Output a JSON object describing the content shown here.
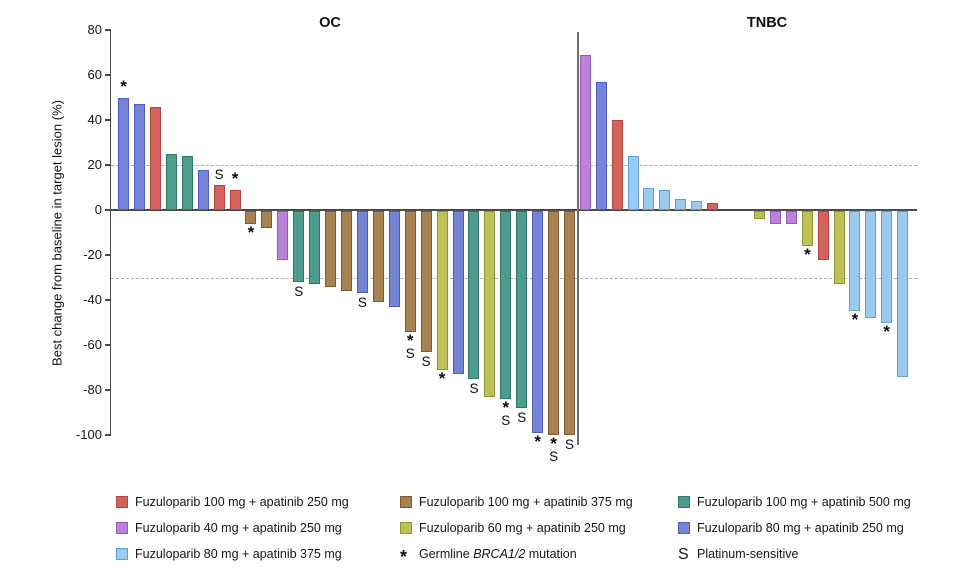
{
  "chart_data": {
    "type": "bar",
    "subtype": "waterfall",
    "ylabel": "Best change from baseline in target lesion (%)",
    "ylim": [
      -100,
      80
    ],
    "yticks": [
      80,
      60,
      40,
      20,
      0,
      -20,
      -40,
      -60,
      -80,
      -100
    ],
    "reference_lines": [
      20,
      -30
    ],
    "grid": "dashed-thresholds-only",
    "legend_position": "bottom",
    "panels": [
      {
        "name": "OC",
        "bars": [
          {
            "v": 50,
            "g": "bv",
            "m": "*"
          },
          {
            "v": 47,
            "g": "bv",
            "m": ""
          },
          {
            "v": 46,
            "g": "r",
            "m": ""
          },
          {
            "v": 25,
            "g": "t",
            "m": ""
          },
          {
            "v": 24,
            "g": "t",
            "m": ""
          },
          {
            "v": 18,
            "g": "bv",
            "m": ""
          },
          {
            "v": 11,
            "g": "r",
            "m": "S"
          },
          {
            "v": 9,
            "g": "r",
            "m": "*"
          },
          {
            "v": -6,
            "g": "br",
            "m": "*"
          },
          {
            "v": -8,
            "g": "br",
            "m": ""
          },
          {
            "v": -22,
            "g": "pu",
            "m": ""
          },
          {
            "v": -32,
            "g": "t",
            "m": "S"
          },
          {
            "v": -33,
            "g": "t",
            "m": ""
          },
          {
            "v": -34,
            "g": "br",
            "m": ""
          },
          {
            "v": -36,
            "g": "br",
            "m": ""
          },
          {
            "v": -37,
            "g": "bv",
            "m": "S"
          },
          {
            "v": -41,
            "g": "br",
            "m": ""
          },
          {
            "v": -43,
            "g": "bv",
            "m": ""
          },
          {
            "v": -54,
            "g": "br",
            "m": "*S"
          },
          {
            "v": -63,
            "g": "br",
            "m": "S"
          },
          {
            "v": -71,
            "g": "yg",
            "m": "*"
          },
          {
            "v": -73,
            "g": "bv",
            "m": ""
          },
          {
            "v": -75,
            "g": "t",
            "m": "S"
          },
          {
            "v": -83,
            "g": "yg",
            "m": ""
          },
          {
            "v": -84,
            "g": "t",
            "m": "*S"
          },
          {
            "v": -88,
            "g": "t",
            "m": "S"
          },
          {
            "v": -99,
            "g": "bv",
            "m": "*"
          },
          {
            "v": -100,
            "g": "br",
            "m": "*S"
          },
          {
            "v": -100,
            "g": "br",
            "m": "S"
          }
        ]
      },
      {
        "name": "TNBC",
        "bars": [
          {
            "v": 69,
            "g": "pu",
            "m": ""
          },
          {
            "v": 57,
            "g": "bv",
            "m": ""
          },
          {
            "v": 40,
            "g": "r",
            "m": ""
          },
          {
            "v": 24,
            "g": "lb",
            "m": ""
          },
          {
            "v": 10,
            "g": "lb",
            "m": ""
          },
          {
            "v": 9,
            "g": "lb",
            "m": ""
          },
          {
            "v": 5,
            "g": "lb",
            "m": ""
          },
          {
            "v": 4,
            "g": "lb",
            "m": ""
          },
          {
            "v": 3,
            "g": "r",
            "m": ""
          },
          {
            "v": 0,
            "g": null,
            "m": ""
          },
          {
            "v": 0,
            "g": null,
            "m": ""
          },
          {
            "v": -4,
            "g": "yg",
            "m": ""
          },
          {
            "v": -6,
            "g": "pu",
            "m": ""
          },
          {
            "v": -6,
            "g": "pu",
            "m": ""
          },
          {
            "v": -16,
            "g": "yg",
            "m": "*"
          },
          {
            "v": -22,
            "g": "r",
            "m": ""
          },
          {
            "v": -33,
            "g": "yg",
            "m": ""
          },
          {
            "v": -45,
            "g": "lb",
            "m": "*"
          },
          {
            "v": -48,
            "g": "lb",
            "m": ""
          },
          {
            "v": -50,
            "g": "lb",
            "m": "*"
          },
          {
            "v": -74,
            "g": "lb",
            "m": ""
          }
        ]
      }
    ],
    "groups": {
      "r": {
        "label": "Fuzuloparib 100 mg + apatinib 250 mg",
        "fill": "#d5625d",
        "border": "#b7443f"
      },
      "br": {
        "label": "Fuzuloparib 100 mg + apatinib 375 mg",
        "fill": "#a9804f",
        "border": "#7e5c33"
      },
      "t": {
        "label": "Fuzuloparib 100 mg + apatinib 500 mg",
        "fill": "#4d9d8e",
        "border": "#32766a"
      },
      "pu": {
        "label": "Fuzuloparib 40 mg + apatinib 250 mg",
        "fill": "#bc82d9",
        "border": "#9a57bd"
      },
      "yg": {
        "label": "Fuzuloparib 60 mg + apatinib 250 mg",
        "fill": "#bcc158",
        "border": "#8f962f"
      },
      "bv": {
        "label": "Fuzuloparib 80 mg + apatinib 250 mg",
        "fill": "#7583d8",
        "border": "#4c5cc0"
      },
      "lb": {
        "label": "Fuzuloparib 80 mg + apatinib 375 mg",
        "fill": "#9bcaef",
        "border": "#5e9fd6"
      }
    },
    "legend_order": [
      "r",
      "br",
      "t",
      "pu",
      "yg",
      "bv",
      "lb"
    ],
    "symbol_legend": [
      {
        "symbol": "*",
        "label_prefix": "Germline ",
        "label_italic": "BRCA1/2",
        "label_suffix": " mutation"
      },
      {
        "symbol": "S",
        "label_prefix": "Platinum-sensitive",
        "label_italic": "",
        "label_suffix": ""
      }
    ]
  }
}
